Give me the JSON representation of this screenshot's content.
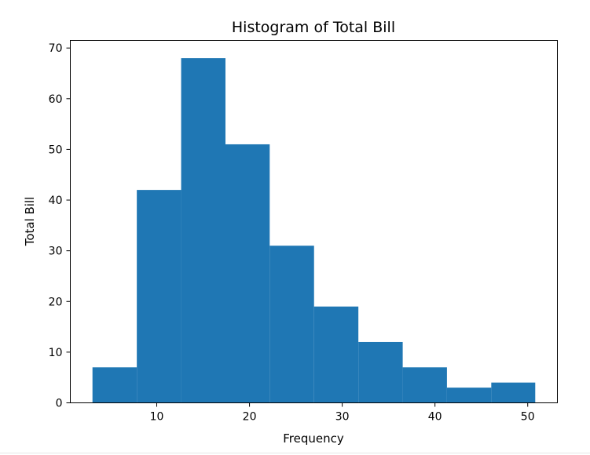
{
  "chart_data": {
    "type": "bar",
    "title": "Histogram of Total Bill",
    "xlabel": "Frequency",
    "ylabel": "Total Bill",
    "bin_edges": [
      3.07,
      7.85,
      12.63,
      17.41,
      22.18,
      26.96,
      31.74,
      36.52,
      41.29,
      46.07,
      50.81
    ],
    "values": [
      7,
      42,
      68,
      51,
      31,
      19,
      12,
      7,
      3,
      4
    ],
    "xlim": [
      0.68,
      53.2
    ],
    "ylim": [
      0,
      71.5
    ],
    "xticks": [
      10,
      20,
      30,
      40,
      50
    ],
    "yticks": [
      0,
      10,
      20,
      30,
      40,
      50,
      60,
      70
    ],
    "bar_color": "#1f77b4",
    "grid": false
  }
}
